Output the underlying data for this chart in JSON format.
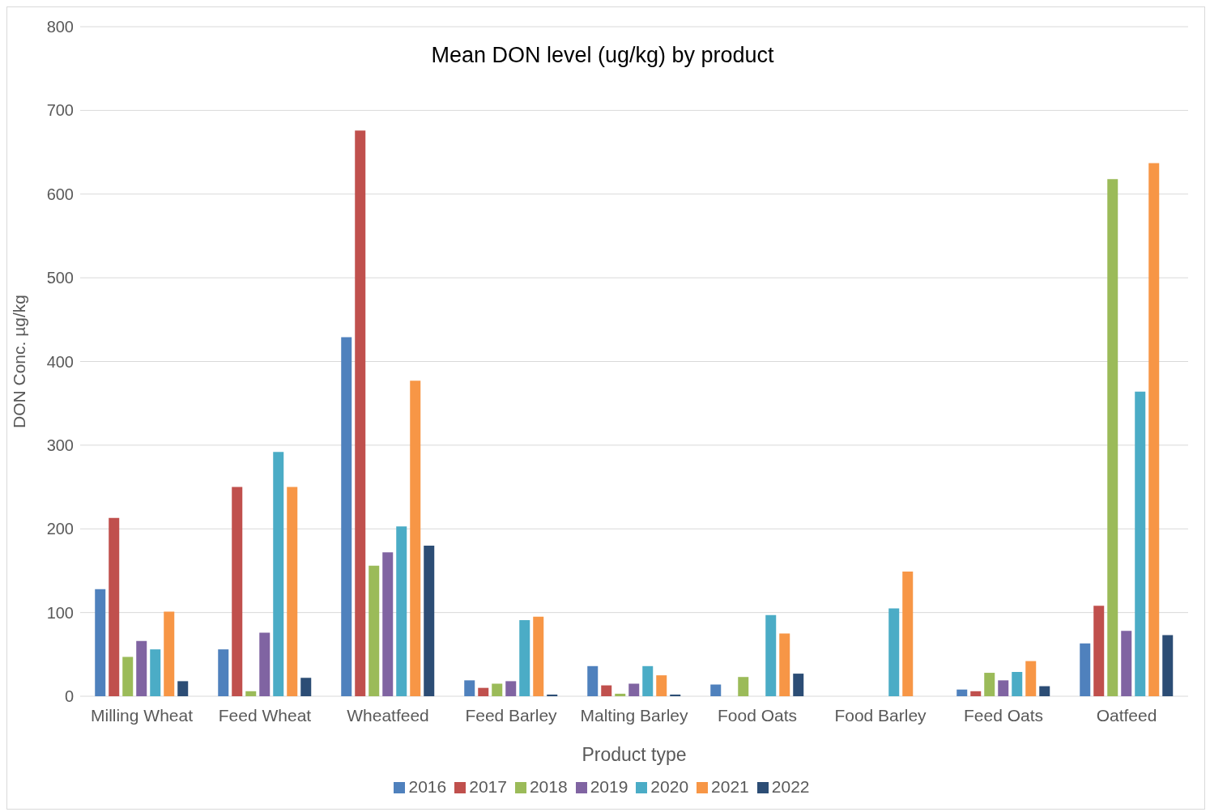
{
  "chart_data": {
    "type": "bar",
    "title": "Mean DON level (ug/kg) by product",
    "xlabel": "Product type",
    "ylabel": "DON Conc. µg/kg",
    "categories": [
      "Milling Wheat",
      "Feed Wheat",
      "Wheatfeed",
      "Feed Barley",
      "Malting Barley",
      "Food Oats",
      "Food Barley",
      "Feed Oats",
      "Oatfeed"
    ],
    "series": [
      {
        "name": "2016",
        "color": "#4f81bd",
        "values": [
          128,
          56,
          429,
          19,
          36,
          14,
          null,
          8,
          63
        ]
      },
      {
        "name": "2017",
        "color": "#c0504d",
        "values": [
          213,
          250,
          676,
          10,
          13,
          null,
          null,
          6,
          108
        ]
      },
      {
        "name": "2018",
        "color": "#9bbb59",
        "values": [
          47,
          6,
          156,
          15,
          3,
          23,
          null,
          28,
          618
        ]
      },
      {
        "name": "2019",
        "color": "#8064a2",
        "values": [
          66,
          76,
          172,
          18,
          15,
          null,
          null,
          19,
          78
        ]
      },
      {
        "name": "2020",
        "color": "#4bacc6",
        "values": [
          56,
          292,
          203,
          91,
          36,
          97,
          105,
          29,
          364
        ]
      },
      {
        "name": "2021",
        "color": "#f79646",
        "values": [
          101,
          250,
          377,
          95,
          25,
          75,
          149,
          42,
          637
        ]
      },
      {
        "name": "2022",
        "color": "#2c4d75",
        "values": [
          18,
          22,
          180,
          2,
          2,
          27,
          null,
          12,
          73
        ]
      }
    ],
    "ylim": [
      0,
      800
    ],
    "yticks": [
      0,
      100,
      200,
      300,
      400,
      500,
      600,
      700,
      800
    ],
    "grid": "y",
    "legend": "bottom"
  }
}
